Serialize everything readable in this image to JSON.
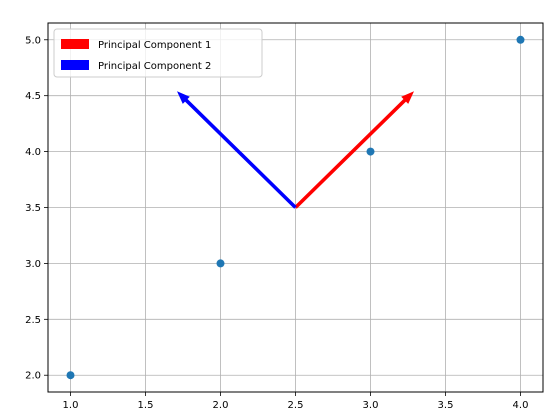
{
  "chart_data": {
    "type": "scatter",
    "title": "",
    "xlabel": "",
    "ylabel": "",
    "xlim": [
      0.85,
      4.15
    ],
    "ylim": [
      1.85,
      5.15
    ],
    "xticks": [
      1.0,
      1.5,
      2.0,
      2.5,
      3.0,
      3.5,
      4.0
    ],
    "yticks": [
      2.0,
      2.5,
      3.0,
      3.5,
      4.0,
      4.5,
      5.0
    ],
    "xtick_labels": [
      "1.0",
      "1.5",
      "2.0",
      "2.5",
      "3.0",
      "3.5",
      "4.0"
    ],
    "ytick_labels": [
      "2.0",
      "2.5",
      "3.0",
      "3.5",
      "4.0",
      "4.5",
      "5.0"
    ],
    "grid": true,
    "legend_position": "top-left",
    "points": {
      "x": [
        1.0,
        2.0,
        3.0,
        4.0
      ],
      "y": [
        2.0,
        3.0,
        4.0,
        5.0
      ],
      "color": "#1f77b4"
    },
    "arrows": [
      {
        "name": "Principal Component 1",
        "x0": 2.5,
        "y0": 3.5,
        "x1": 3.29,
        "y1": 4.54,
        "color": "#ff0000"
      },
      {
        "name": "Principal Component 2",
        "x0": 2.5,
        "y0": 3.5,
        "x1": 1.71,
        "y1": 4.54,
        "color": "#0000ff"
      }
    ]
  }
}
